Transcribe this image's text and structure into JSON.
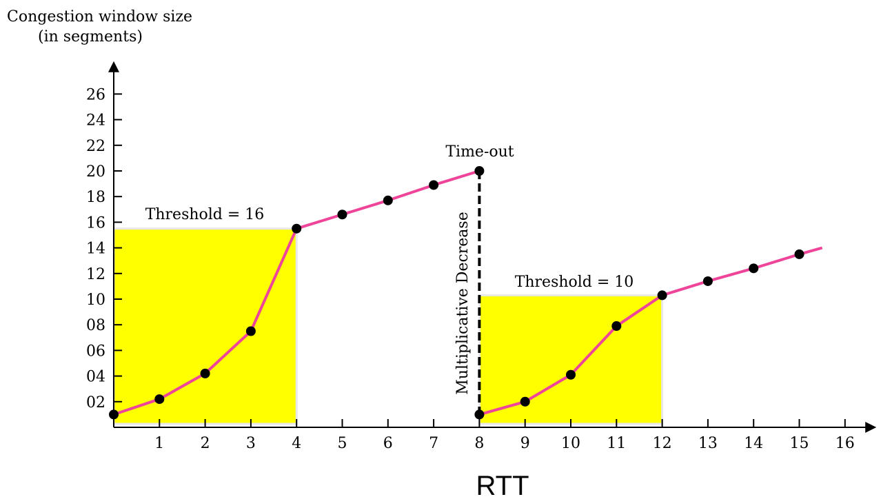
{
  "chart_data": {
    "type": "line",
    "ylabel_line1": "Congestion window size",
    "ylabel_line2": "(in segments)",
    "xlabel": "RTT",
    "x_ticks": [
      "1",
      "2",
      "3",
      "4",
      "5",
      "6",
      "7",
      "8",
      "9",
      "10",
      "11",
      "12",
      "13",
      "14",
      "15",
      "16"
    ],
    "y_ticks": [
      "02",
      "04",
      "06",
      "08",
      "10",
      "12",
      "14",
      "16",
      "18",
      "20",
      "22",
      "24",
      "26"
    ],
    "xlim": [
      0,
      16
    ],
    "ylim": [
      0,
      27
    ],
    "series": [
      {
        "x": [
          0,
          1,
          2,
          3,
          4,
          5,
          6,
          7,
          8
        ],
        "y": [
          1,
          2.2,
          4.2,
          7.5,
          15.5,
          16.6,
          17.7,
          18.9,
          20
        ]
      },
      {
        "x": [
          8,
          9,
          10,
          11,
          12,
          13,
          14,
          15,
          15.5
        ],
        "y": [
          1,
          2,
          4.1,
          7.9,
          10.3,
          11.4,
          12.4,
          13.5,
          14
        ]
      }
    ],
    "markers": [
      {
        "x": 0,
        "y": 1
      },
      {
        "x": 1,
        "y": 2.2
      },
      {
        "x": 2,
        "y": 4.2
      },
      {
        "x": 3,
        "y": 7.5
      },
      {
        "x": 4,
        "y": 15.5
      },
      {
        "x": 5,
        "y": 16.6
      },
      {
        "x": 6,
        "y": 17.7
      },
      {
        "x": 7,
        "y": 18.9
      },
      {
        "x": 8,
        "y": 20
      },
      {
        "x": 8,
        "y": 1
      },
      {
        "x": 9,
        "y": 2
      },
      {
        "x": 10,
        "y": 4.1
      },
      {
        "x": 11,
        "y": 7.9
      },
      {
        "x": 12,
        "y": 10.3
      },
      {
        "x": 13,
        "y": 11.4
      },
      {
        "x": 14,
        "y": 12.4
      },
      {
        "x": 15,
        "y": 13.5
      }
    ],
    "threshold_regions": [
      {
        "label": "Threshold = 16",
        "x0": 0,
        "x1": 4,
        "top": 15.5
      },
      {
        "label": "Threshold = 10",
        "x0": 8,
        "x1": 12,
        "top": 10.3
      }
    ],
    "annotations": {
      "timeout": "Time-out",
      "decrease": "Multiplicative Decrease"
    },
    "colors": {
      "line": "#ee4499",
      "fill": "#ffff00",
      "marker": "#000000",
      "axis": "#000000"
    }
  }
}
